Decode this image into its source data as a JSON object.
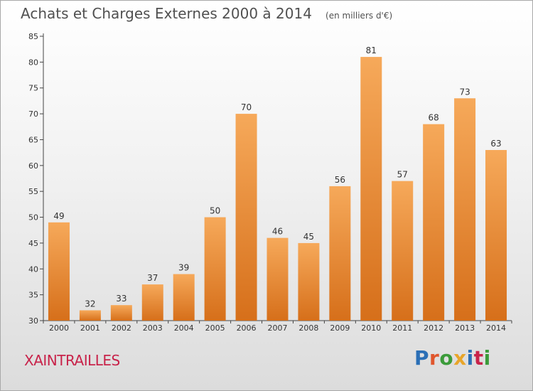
{
  "title": "Achats et Charges Externes 2000 à 2014",
  "subtitle": "(en milliers d'€)",
  "commune": "XAINTRAILLES",
  "logo": {
    "text": "Proxiti",
    "colors": [
      "#2b6fb6",
      "#e0562d",
      "#3b9b3a",
      "#e8a52a",
      "#2b6fb6",
      "#c8234a",
      "#3b9b3a"
    ]
  },
  "colors": {
    "bar_light": "#f6a95a",
    "bar_dark": "#d66f1a",
    "axis": "#444444",
    "grid": "#d0d0d0"
  },
  "chart_data": {
    "type": "bar",
    "title": "Achats et Charges Externes 2000 à 2014",
    "subtitle": "(en milliers d'€)",
    "xlabel": "",
    "ylabel": "",
    "categories": [
      "2000",
      "2001",
      "2002",
      "2003",
      "2004",
      "2005",
      "2006",
      "2007",
      "2008",
      "2009",
      "2010",
      "2011",
      "2012",
      "2013",
      "2014"
    ],
    "values": [
      49,
      32,
      33,
      37,
      39,
      50,
      70,
      46,
      45,
      56,
      81,
      57,
      68,
      73,
      63
    ],
    "ylim": [
      30,
      85
    ],
    "yticks": [
      30,
      35,
      40,
      45,
      50,
      55,
      60,
      65,
      70,
      75,
      80,
      85
    ],
    "grid": false,
    "legend": "none"
  }
}
